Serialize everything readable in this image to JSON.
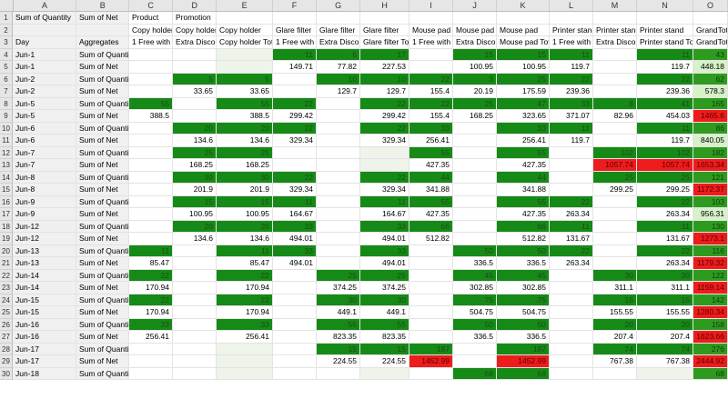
{
  "columns": [
    "A",
    "B",
    "C",
    "D",
    "E",
    "F",
    "G",
    "H",
    "I",
    "J",
    "K",
    "L",
    "M",
    "N",
    "O"
  ],
  "rows": [
    [
      "Sum of Quantity",
      "Sum of Net",
      "Product",
      "Promotion",
      "",
      "",
      "",
      "",
      "",
      "",
      "",
      "",
      "",
      "",
      ""
    ],
    [
      "",
      "",
      "Copy holder",
      "Copy holder",
      "Copy holder",
      "Glare filter",
      "Glare filter",
      "Glare filter",
      "Mouse pad",
      "Mouse pad",
      "Mouse pad",
      "Printer stand",
      "Printer stand",
      "Printer stand",
      "GrandTotal"
    ],
    [
      "Day",
      "Aggregates",
      "1 Free with 10",
      "Extra Discount",
      "Copy holder Total",
      "1 Free with 10",
      "Extra Discount",
      "Glare filter Total",
      "1 Free with 10",
      "Extra Discount",
      "Mouse pad Total",
      "1 Free with 10",
      "Extra Discount",
      "Printer stand Total",
      "GrandTotal"
    ],
    [
      "Jun-1",
      "Sum of Quantity",
      "",
      "",
      "",
      "11",
      "6",
      "17",
      "",
      "15",
      "15",
      "11",
      "",
      "11",
      "43"
    ],
    [
      "Jun-1",
      "Sum of Net",
      "",
      "",
      "",
      "149.71",
      "77.82",
      "227.53",
      "",
      "100.95",
      "100.95",
      "119.7",
      "",
      "119.7",
      "448.18"
    ],
    [
      "Jun-2",
      "Sum of Quantity",
      "",
      "5",
      "5",
      "",
      "10",
      "10",
      "22",
      "3",
      "25",
      "22",
      "",
      "22",
      "62"
    ],
    [
      "Jun-2",
      "Sum of Net",
      "",
      "33.65",
      "33.65",
      "",
      "129.7",
      "129.7",
      "155.4",
      "20.19",
      "175.59",
      "239.36",
      "",
      "239.36",
      "578.3"
    ],
    [
      "Jun-5",
      "Sum of Quantity",
      "55",
      "",
      "55",
      "22",
      "",
      "22",
      "22",
      "25",
      "47",
      "33",
      "8",
      "41",
      "165"
    ],
    [
      "Jun-5",
      "Sum of Net",
      "388.5",
      "",
      "388.5",
      "299.42",
      "",
      "299.42",
      "155.4",
      "168.25",
      "323.65",
      "371.07",
      "82.96",
      "454.03",
      "1465.6"
    ],
    [
      "Jun-6",
      "Sum of Quantity",
      "",
      "20",
      "20",
      "22",
      "",
      "22",
      "33",
      "",
      "33",
      "11",
      "",
      "11",
      "86"
    ],
    [
      "Jun-6",
      "Sum of Net",
      "",
      "134.6",
      "134.6",
      "329.34",
      "",
      "329.34",
      "256.41",
      "",
      "256.41",
      "119.7",
      "",
      "119.7",
      "840.05"
    ],
    [
      "Jun-7",
      "Sum of Quantity",
      "",
      "25",
      "25",
      "",
      "",
      "",
      "55",
      "",
      "55",
      "",
      "102",
      "102",
      "182"
    ],
    [
      "Jun-7",
      "Sum of Net",
      "",
      "168.25",
      "168.25",
      "",
      "",
      "",
      "427.35",
      "",
      "427.35",
      "",
      "1057.74",
      "1057.74",
      "1653.34"
    ],
    [
      "Jun-8",
      "Sum of Quantity",
      "",
      "30",
      "30",
      "22",
      "",
      "22",
      "44",
      "",
      "44",
      "",
      "25",
      "25",
      "121"
    ],
    [
      "Jun-8",
      "Sum of Net",
      "",
      "201.9",
      "201.9",
      "329.34",
      "",
      "329.34",
      "341.88",
      "",
      "341.88",
      "",
      "299.25",
      "299.25",
      "1172.37"
    ],
    [
      "Jun-9",
      "Sum of Quantity",
      "",
      "15",
      "15",
      "11",
      "",
      "11",
      "55",
      "",
      "55",
      "22",
      "",
      "22",
      "103"
    ],
    [
      "Jun-9",
      "Sum of Net",
      "",
      "100.95",
      "100.95",
      "164.67",
      "",
      "164.67",
      "427.35",
      "",
      "427.35",
      "263.34",
      "",
      "263.34",
      "956.31"
    ],
    [
      "Jun-12",
      "Sum of Quantity",
      "",
      "20",
      "20",
      "33",
      "",
      "33",
      "66",
      "",
      "66",
      "11",
      "",
      "11",
      "130"
    ],
    [
      "Jun-12",
      "Sum of Net",
      "",
      "134.6",
      "134.6",
      "494.01",
      "",
      "494.01",
      "512.82",
      "",
      "512.82",
      "131.67",
      "",
      "131.67",
      "1273.1"
    ],
    [
      "Jun-13",
      "Sum of Quantity",
      "11",
      "",
      "11",
      "33",
      "",
      "33",
      "",
      "50",
      "50",
      "22",
      "",
      "22",
      "116"
    ],
    [
      "Jun-13",
      "Sum of Net",
      "85.47",
      "",
      "85.47",
      "494.01",
      "",
      "494.01",
      "",
      "336.5",
      "336.5",
      "263.34",
      "",
      "263.34",
      "1179.32"
    ],
    [
      "Jun-14",
      "Sum of Quantity",
      "22",
      "",
      "22",
      "",
      "25",
      "25",
      "",
      "45",
      "45",
      "",
      "30",
      "30",
      "122"
    ],
    [
      "Jun-14",
      "Sum of Net",
      "170.94",
      "",
      "170.94",
      "",
      "374.25",
      "374.25",
      "",
      "302.85",
      "302.85",
      "",
      "311.1",
      "311.1",
      "1159.14"
    ],
    [
      "Jun-15",
      "Sum of Quantity",
      "22",
      "",
      "22",
      "",
      "30",
      "30",
      "",
      "75",
      "75",
      "",
      "15",
      "15",
      "142"
    ],
    [
      "Jun-15",
      "Sum of Net",
      "170.94",
      "",
      "170.94",
      "",
      "449.1",
      "449.1",
      "",
      "504.75",
      "504.75",
      "",
      "155.55",
      "155.55",
      "1280.34"
    ],
    [
      "Jun-16",
      "Sum of Quantity",
      "33",
      "",
      "33",
      "",
      "55",
      "55",
      "",
      "50",
      "50",
      "",
      "20",
      "20",
      "158"
    ],
    [
      "Jun-16",
      "Sum of Net",
      "256.41",
      "",
      "256.41",
      "",
      "823.35",
      "823.35",
      "",
      "336.5",
      "336.5",
      "",
      "207.4",
      "207.4",
      "1623.66"
    ],
    [
      "Jun-17",
      "Sum of Quantity",
      "",
      "",
      "",
      "",
      "15",
      "15",
      "187",
      "",
      "187",
      "",
      "74",
      "74",
      "276"
    ],
    [
      "Jun-17",
      "Sum of Net",
      "",
      "",
      "",
      "",
      "224.55",
      "224.55",
      "1452.99",
      "",
      "1452.99",
      "",
      "767.38",
      "767.38",
      "2444.92"
    ],
    [
      "Jun-18",
      "Sum of Quantity",
      "",
      "",
      "",
      "",
      "",
      "",
      "",
      "68",
      "68",
      "",
      "",
      "",
      "68"
    ]
  ],
  "highlights": {
    "green_fill": "#168a16",
    "red_fill": "#ee1c1c"
  }
}
